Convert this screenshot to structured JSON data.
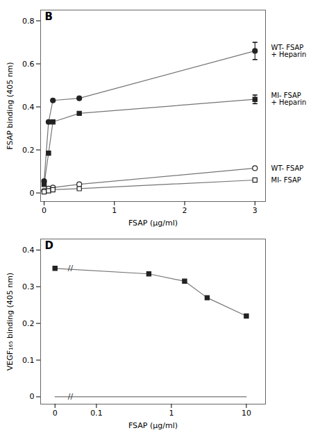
{
  "chart_data": [
    {
      "type": "line",
      "title": "B",
      "xlabel": "FSAP (μg/ml)",
      "ylabel": "FSAP binding (405 nm)",
      "xlim": [
        -0.05,
        3.15
      ],
      "ylim": [
        -0.04,
        0.85
      ],
      "xticks": [
        0,
        1,
        2,
        3
      ],
      "yticks": [
        0,
        0.2,
        0.4,
        0.6,
        0.8
      ],
      "series": [
        {
          "name": "WT- FSAP\n+ Heparin",
          "x": [
            0,
            0.063,
            0.125,
            0.5,
            3.0
          ],
          "values": [
            0.055,
            0.33,
            0.43,
            0.44,
            0.66
          ],
          "marker": "filled circle",
          "errors": [
            null,
            null,
            null,
            null,
            0.04
          ]
        },
        {
          "name": "MI- FSAP\n+ Heparin",
          "x": [
            0,
            0.063,
            0.125,
            0.5,
            3.0
          ],
          "values": [
            0.04,
            0.185,
            0.33,
            0.37,
            0.435
          ],
          "marker": "filled square",
          "errors": [
            null,
            null,
            null,
            null,
            0.02
          ]
        },
        {
          "name": "WT- FSAP",
          "x": [
            0,
            0.063,
            0.125,
            0.5,
            3.0
          ],
          "values": [
            0.01,
            0.02,
            0.025,
            0.04,
            0.115
          ],
          "marker": "open circle"
        },
        {
          "name": "MI- FSAP",
          "x": [
            0,
            0.063,
            0.125,
            0.5,
            3.0
          ],
          "values": [
            0.005,
            0.01,
            0.015,
            0.02,
            0.06
          ],
          "marker": "open square"
        }
      ]
    },
    {
      "type": "line",
      "title": "D",
      "log": "x",
      "xlabel": "FSAP (μg/ml)",
      "ylabel": "VEGF₁₆₅ binding (405 nm)",
      "xlim": [
        0.018,
        18.0
      ],
      "ylim": [
        -0.02,
        0.43
      ],
      "xticks": [
        {
          "value": 0.028,
          "label": "0"
        },
        0.1,
        1,
        10
      ],
      "yticks": [
        0,
        0.1,
        0.2,
        0.3,
        0.4
      ],
      "series": [
        {
          "x": [
            0.028,
            0.5,
            1.5,
            3.0,
            10.0
          ],
          "values": [
            0.35,
            0.335,
            0.315,
            0.27,
            0.22
          ],
          "marker": "filled square"
        },
        {
          "x": [
            0.028,
            10.0
          ],
          "values": [
            0.0,
            0.0
          ]
        }
      ],
      "annotations": [
        {
          "text": "//",
          "x": 0.045,
          "y": 0.35
        },
        {
          "text": "//",
          "x": 0.045,
          "y": 0.0
        }
      ]
    }
  ]
}
